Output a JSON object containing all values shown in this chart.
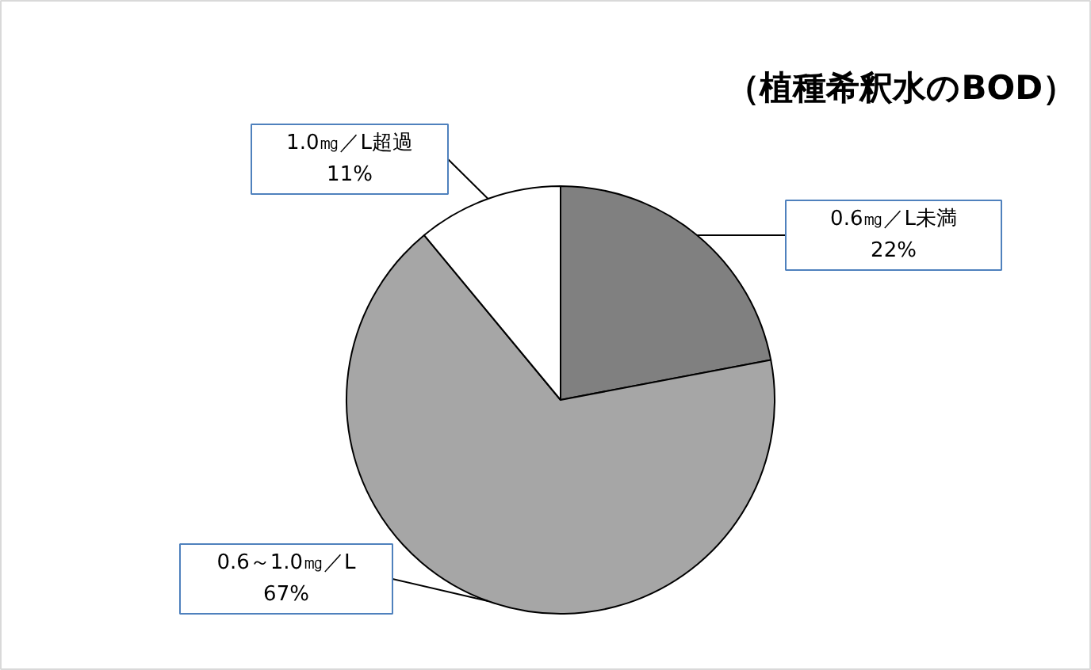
{
  "chart_data": {
    "type": "pie",
    "title": "（植種希釈水のBOD）",
    "categories": [
      "0.6㎎／L未満",
      "0.6～1.0㎎／L",
      "1.0㎎／L超過"
    ],
    "values": [
      22,
      67,
      11
    ],
    "colors": [
      "#808080",
      "#a6a6a6",
      "#ffffff"
    ],
    "value_labels": [
      "22%",
      "67%",
      "11%"
    ]
  }
}
